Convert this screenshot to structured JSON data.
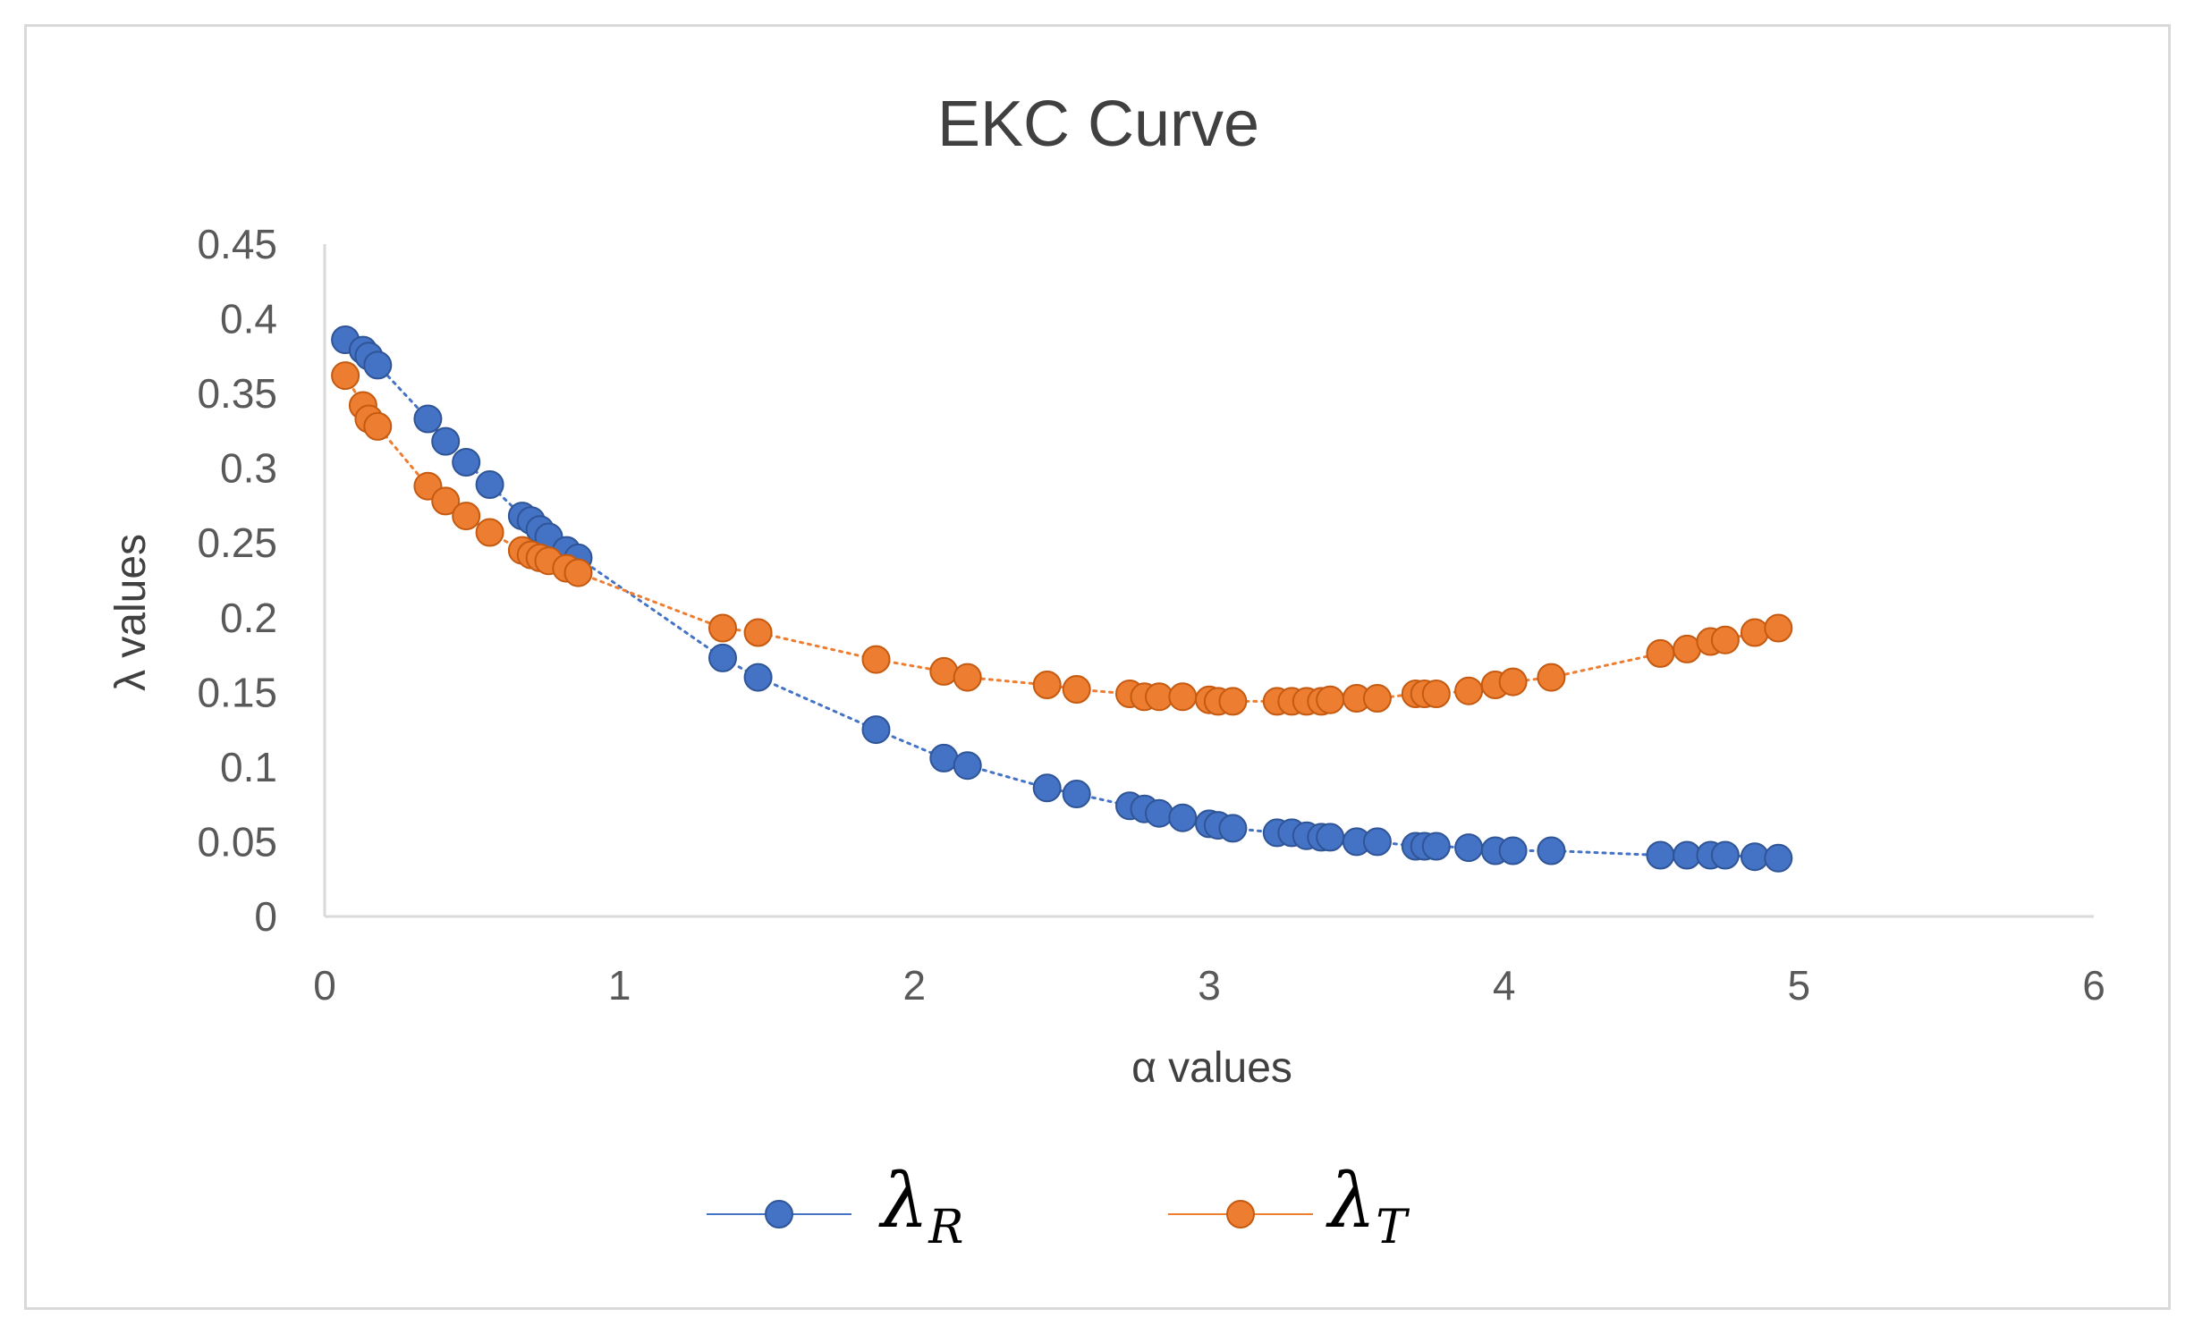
{
  "chart_data": {
    "type": "scatter",
    "title": "EKC Curve",
    "xlabel": "α values",
    "ylabel": "λ values",
    "xlim": [
      0,
      6
    ],
    "ylim": [
      0,
      0.45
    ],
    "xticks": [
      "0",
      "1",
      "2",
      "3",
      "4",
      "5",
      "6"
    ],
    "yticks": [
      "0",
      "0.05",
      "0.1",
      "0.15",
      "0.2",
      "0.25",
      "0.3",
      "0.35",
      "0.4",
      "0.45"
    ],
    "legend_position": "bottom",
    "series": [
      {
        "name": "λR",
        "symbol": "λ",
        "subscript": "R",
        "color": "#4472c4",
        "x": [
          0.07,
          0.13,
          0.15,
          0.18,
          0.35,
          0.41,
          0.48,
          0.56,
          0.67,
          0.7,
          0.73,
          0.76,
          0.82,
          0.86,
          1.35,
          1.47,
          1.87,
          2.1,
          2.18,
          2.45,
          2.55,
          2.73,
          2.78,
          2.83,
          2.91,
          3.0,
          3.03,
          3.08,
          3.23,
          3.28,
          3.33,
          3.38,
          3.41,
          3.5,
          3.57,
          3.7,
          3.73,
          3.77,
          3.88,
          3.97,
          4.03,
          4.16,
          4.53,
          4.62,
          4.7,
          4.75,
          4.85,
          4.93
        ],
        "y": [
          0.386,
          0.379,
          0.375,
          0.369,
          0.333,
          0.318,
          0.304,
          0.289,
          0.268,
          0.265,
          0.259,
          0.254,
          0.245,
          0.24,
          0.173,
          0.16,
          0.125,
          0.106,
          0.101,
          0.086,
          0.082,
          0.074,
          0.072,
          0.069,
          0.066,
          0.062,
          0.061,
          0.059,
          0.056,
          0.056,
          0.054,
          0.053,
          0.053,
          0.05,
          0.05,
          0.047,
          0.047,
          0.047,
          0.046,
          0.044,
          0.044,
          0.044,
          0.041,
          0.041,
          0.041,
          0.041,
          0.04,
          0.039
        ]
      },
      {
        "name": "λT",
        "symbol": "λ",
        "subscript": "T",
        "color": "#ed7d31",
        "x": [
          0.07,
          0.13,
          0.15,
          0.18,
          0.35,
          0.41,
          0.48,
          0.56,
          0.67,
          0.7,
          0.73,
          0.76,
          0.82,
          0.86,
          1.35,
          1.47,
          1.87,
          2.1,
          2.18,
          2.45,
          2.55,
          2.73,
          2.78,
          2.83,
          2.91,
          3.0,
          3.03,
          3.08,
          3.23,
          3.28,
          3.33,
          3.38,
          3.41,
          3.5,
          3.57,
          3.7,
          3.73,
          3.77,
          3.88,
          3.97,
          4.03,
          4.16,
          4.53,
          4.62,
          4.7,
          4.75,
          4.85,
          4.93
        ],
        "y": [
          0.362,
          0.342,
          0.333,
          0.328,
          0.288,
          0.278,
          0.268,
          0.257,
          0.245,
          0.242,
          0.24,
          0.238,
          0.233,
          0.23,
          0.193,
          0.19,
          0.172,
          0.164,
          0.16,
          0.155,
          0.152,
          0.149,
          0.147,
          0.147,
          0.147,
          0.145,
          0.144,
          0.144,
          0.144,
          0.144,
          0.144,
          0.144,
          0.145,
          0.146,
          0.146,
          0.149,
          0.149,
          0.149,
          0.151,
          0.155,
          0.157,
          0.16,
          0.176,
          0.179,
          0.184,
          0.185,
          0.19,
          0.193
        ]
      }
    ]
  }
}
